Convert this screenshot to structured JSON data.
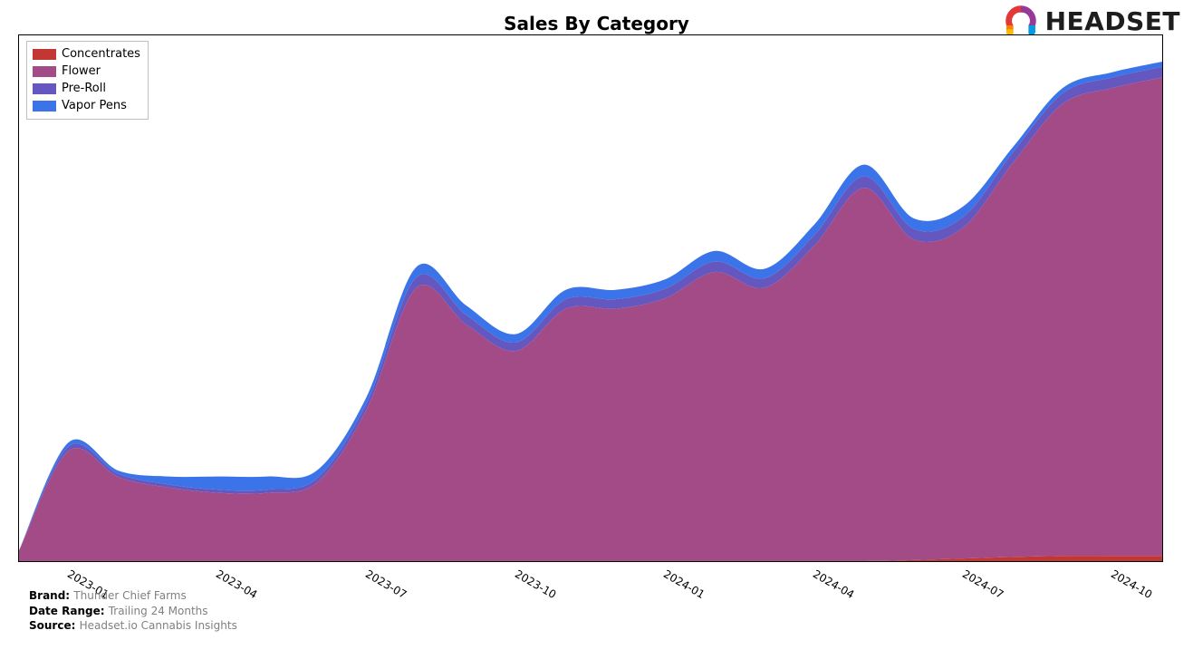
{
  "title": "Sales By Category",
  "title_fontsize": 20,
  "background_color": "#ffffff",
  "axes_border_color": "#000000",
  "chart": {
    "type": "stacked-area",
    "xlim": [
      0,
      23
    ],
    "ylim": [
      0,
      100
    ],
    "yticks_visible": false,
    "xticks": [
      {
        "index": 1,
        "label": "2023-01"
      },
      {
        "index": 4,
        "label": "2023-04"
      },
      {
        "index": 7,
        "label": "2023-07"
      },
      {
        "index": 10,
        "label": "2023-10"
      },
      {
        "index": 13,
        "label": "2024-01"
      },
      {
        "index": 16,
        "label": "2024-04"
      },
      {
        "index": 19,
        "label": "2024-07"
      },
      {
        "index": 22,
        "label": "2024-10"
      }
    ],
    "xtick_rotation_deg": 30,
    "xtick_fontsize": 12,
    "series": [
      {
        "name": "Concentrates",
        "color": "#c23734",
        "values": [
          0,
          0,
          0,
          0,
          0,
          0,
          0,
          0,
          0,
          0,
          0,
          0,
          0,
          0,
          0,
          0,
          0,
          0,
          0.2,
          0.5,
          0.8,
          1.0,
          1.0,
          1.0
        ]
      },
      {
        "name": "Flower",
        "color": "#a34b87",
        "values": [
          2,
          21,
          16,
          14,
          13,
          13,
          15,
          29,
          52,
          45,
          40,
          48,
          48,
          50,
          55,
          52,
          60,
          71,
          61,
          63,
          75,
          86,
          89,
          91
        ]
      },
      {
        "name": "Pre-Roll",
        "color": "#6557c0",
        "values": [
          0.0,
          0.8,
          0.6,
          0.6,
          0.6,
          0.6,
          0.8,
          1.2,
          2.0,
          1.8,
          1.6,
          1.8,
          1.8,
          1.8,
          2.0,
          1.8,
          2.0,
          2.2,
          2.0,
          2.0,
          2.0,
          2.0,
          2.0,
          2.0
        ]
      },
      {
        "name": "Vapor Pens",
        "color": "#3b74e8",
        "values": [
          0.0,
          0.8,
          0.6,
          1.5,
          2.5,
          2.5,
          1.5,
          1.2,
          2.0,
          1.8,
          1.6,
          1.8,
          1.8,
          1.8,
          2.0,
          1.8,
          2.0,
          2.2,
          2.0,
          2.0,
          1.0,
          1.0,
          1.0,
          1.0
        ]
      }
    ]
  },
  "legend": {
    "position": "upper-left",
    "fontsize": 13,
    "border_color": "#bfbfbf",
    "items": [
      {
        "label": "Concentrates",
        "color": "#c23734"
      },
      {
        "label": "Flower",
        "color": "#a34b87"
      },
      {
        "label": "Pre-Roll",
        "color": "#6557c0"
      },
      {
        "label": "Vapor Pens",
        "color": "#3b74e8"
      }
    ]
  },
  "footer": {
    "rows": [
      {
        "key": "Brand:",
        "value": "Thunder Chief Farms"
      },
      {
        "key": "Date Range:",
        "value": "Trailing 24 Months"
      },
      {
        "key": "Source:",
        "value": "Headset.io Cannabis Insights"
      }
    ],
    "key_color": "#000000",
    "value_color": "#808080",
    "fontsize": 12
  },
  "logo": {
    "text": "HEADSET",
    "text_color": "#1d1d1d",
    "fontsize": 28,
    "mark_colors": {
      "red": "#e23838",
      "orange": "#f78200",
      "yellow": "#ffb900",
      "purple": "#973999",
      "blue": "#009cdf"
    }
  }
}
